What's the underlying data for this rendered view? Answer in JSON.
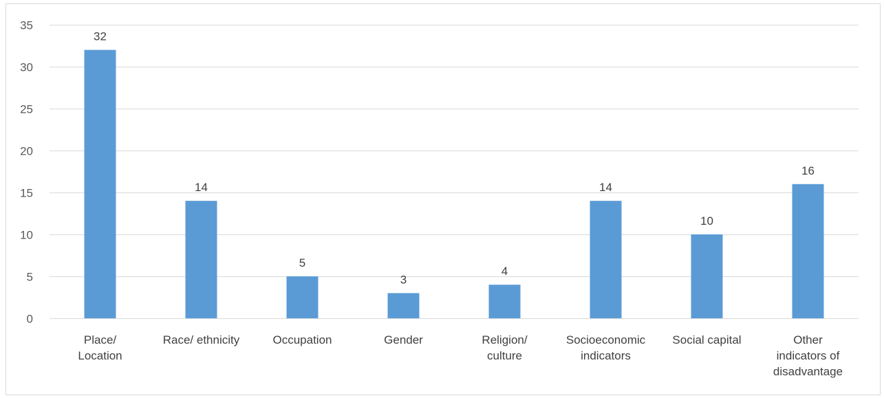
{
  "chart_data": {
    "type": "bar",
    "categories": [
      [
        "Place/",
        "Location"
      ],
      [
        "Race/ ethnicity"
      ],
      [
        "Occupation"
      ],
      [
        "Gender"
      ],
      [
        "Religion/",
        "culture"
      ],
      [
        "Socioeconomic",
        "indicators"
      ],
      [
        "Social capital"
      ],
      [
        "Other",
        "indicators of",
        "disadvantage"
      ]
    ],
    "values": [
      32,
      14,
      5,
      3,
      4,
      14,
      10,
      16
    ],
    "ylim": [
      0,
      35
    ],
    "yticks": [
      0,
      5,
      10,
      15,
      20,
      25,
      30,
      35
    ],
    "grid": true,
    "data_labels": true,
    "bar_color": "#5b9bd5",
    "grid_color": "#d9d9d9"
  }
}
